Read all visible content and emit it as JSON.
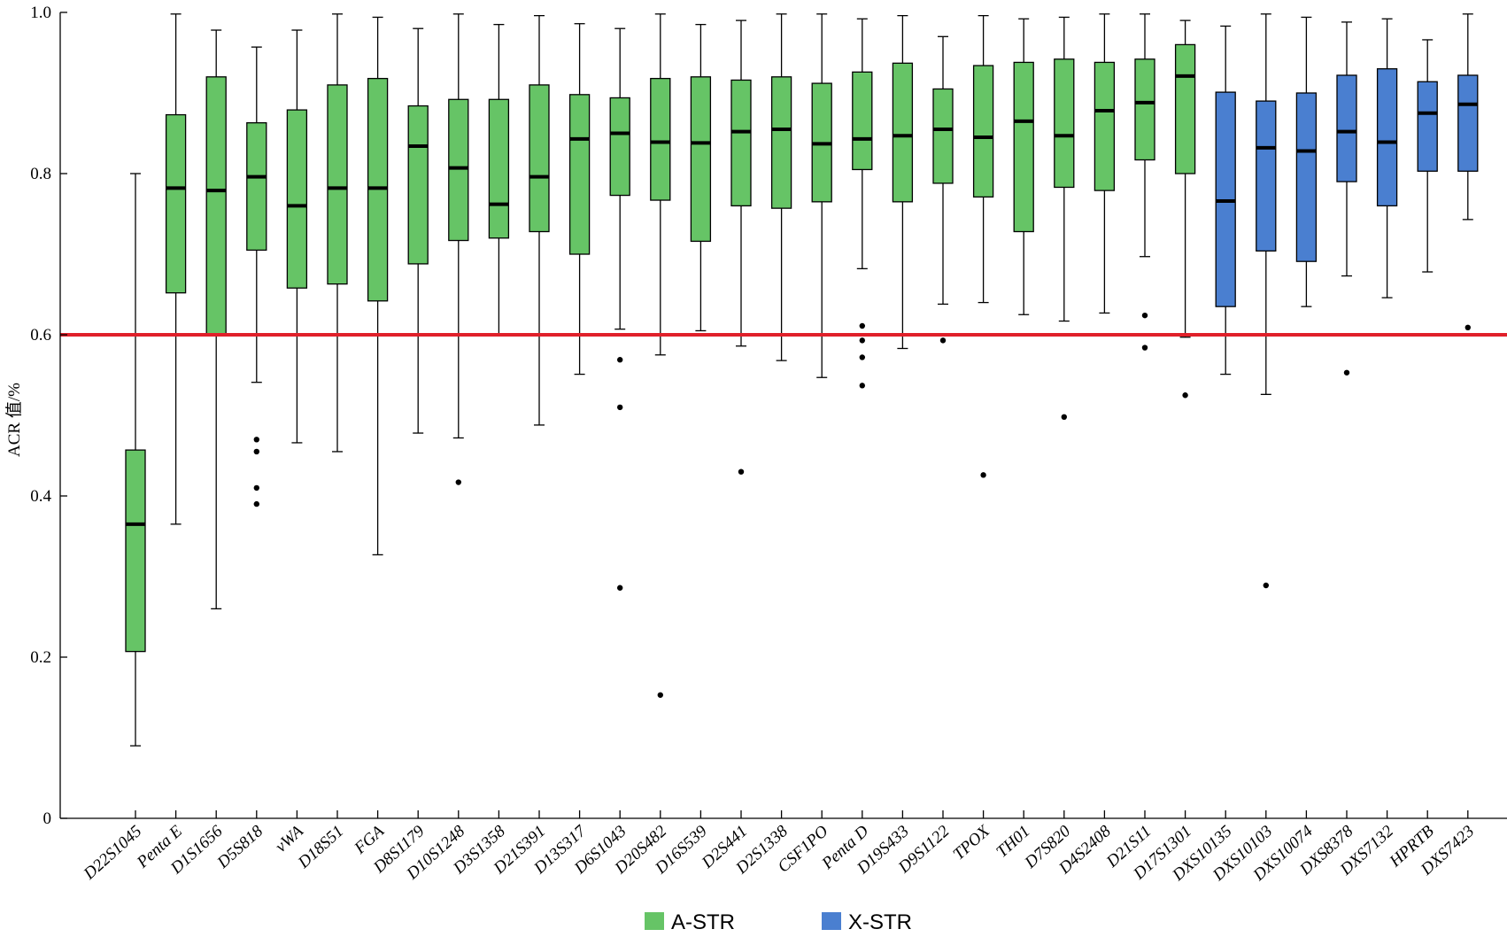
{
  "chart_data": {
    "type": "boxplot",
    "ylabel": "ACR 值/%",
    "ylim": [
      0,
      1.0
    ],
    "yticks": [
      0,
      0.2,
      0.4,
      0.6,
      0.8,
      1.0
    ],
    "ytick_labels": [
      "0",
      "0.2",
      "0.4",
      "0.6",
      "0.8",
      "1.0"
    ],
    "grid": false,
    "threshold": {
      "value": 0.6,
      "color": "#e0202a"
    },
    "groups": [
      {
        "name": "A-STR",
        "color": "#66c466"
      },
      {
        "name": "X-STR",
        "color": "#4a7fd0"
      }
    ],
    "legend_position": "bottom-center",
    "series": [
      {
        "name": "D22S1045",
        "group": "A-STR",
        "whisker_low": 0.09,
        "q1": 0.207,
        "median": 0.365,
        "q3": 0.457,
        "whisker_high": 0.8,
        "outliers": []
      },
      {
        "name": "Penta E",
        "group": "A-STR",
        "whisker_low": 0.365,
        "q1": 0.652,
        "median": 0.782,
        "q3": 0.873,
        "whisker_high": 0.998,
        "outliers": []
      },
      {
        "name": "D1S1656",
        "group": "A-STR",
        "whisker_low": 0.26,
        "q1": 0.6,
        "median": 0.779,
        "q3": 0.92,
        "whisker_high": 0.978,
        "outliers": []
      },
      {
        "name": "D5S818",
        "group": "A-STR",
        "whisker_low": 0.541,
        "q1": 0.705,
        "median": 0.796,
        "q3": 0.863,
        "whisker_high": 0.957,
        "outliers": [
          0.47,
          0.455,
          0.41,
          0.39
        ]
      },
      {
        "name": "vWA",
        "group": "A-STR",
        "whisker_low": 0.466,
        "q1": 0.658,
        "median": 0.76,
        "q3": 0.879,
        "whisker_high": 0.978,
        "outliers": []
      },
      {
        "name": "D18S51",
        "group": "A-STR",
        "whisker_low": 0.455,
        "q1": 0.663,
        "median": 0.782,
        "q3": 0.91,
        "whisker_high": 0.998,
        "outliers": []
      },
      {
        "name": "FGA",
        "group": "A-STR",
        "whisker_low": 0.327,
        "q1": 0.642,
        "median": 0.782,
        "q3": 0.918,
        "whisker_high": 0.994,
        "outliers": []
      },
      {
        "name": "D8S1179",
        "group": "A-STR",
        "whisker_low": 0.478,
        "q1": 0.688,
        "median": 0.834,
        "q3": 0.884,
        "whisker_high": 0.98,
        "outliers": []
      },
      {
        "name": "D10S1248",
        "group": "A-STR",
        "whisker_low": 0.472,
        "q1": 0.717,
        "median": 0.807,
        "q3": 0.892,
        "whisker_high": 0.998,
        "outliers": [
          0.417
        ]
      },
      {
        "name": "D3S1358",
        "group": "A-STR",
        "whisker_low": 0.6,
        "q1": 0.72,
        "median": 0.762,
        "q3": 0.892,
        "whisker_high": 0.985,
        "outliers": []
      },
      {
        "name": "D21S391",
        "group": "A-STR",
        "whisker_low": 0.488,
        "q1": 0.728,
        "median": 0.796,
        "q3": 0.91,
        "whisker_high": 0.996,
        "outliers": []
      },
      {
        "name": "D13S317",
        "group": "A-STR",
        "whisker_low": 0.551,
        "q1": 0.7,
        "median": 0.843,
        "q3": 0.898,
        "whisker_high": 0.986,
        "outliers": []
      },
      {
        "name": "D6S1043",
        "group": "A-STR",
        "whisker_low": 0.607,
        "q1": 0.773,
        "median": 0.85,
        "q3": 0.894,
        "whisker_high": 0.98,
        "outliers": [
          0.569,
          0.51,
          0.286
        ]
      },
      {
        "name": "D20S482",
        "group": "A-STR",
        "whisker_low": 0.575,
        "q1": 0.767,
        "median": 0.839,
        "q3": 0.918,
        "whisker_high": 0.998,
        "outliers": [
          0.153
        ]
      },
      {
        "name": "D16S539",
        "group": "A-STR",
        "whisker_low": 0.605,
        "q1": 0.716,
        "median": 0.838,
        "q3": 0.92,
        "whisker_high": 0.985,
        "outliers": []
      },
      {
        "name": "D2S441",
        "group": "A-STR",
        "whisker_low": 0.586,
        "q1": 0.76,
        "median": 0.852,
        "q3": 0.916,
        "whisker_high": 0.99,
        "outliers": [
          0.43
        ]
      },
      {
        "name": "D2S1338",
        "group": "A-STR",
        "whisker_low": 0.568,
        "q1": 0.757,
        "median": 0.855,
        "q3": 0.92,
        "whisker_high": 0.998,
        "outliers": []
      },
      {
        "name": "CSF1PO",
        "group": "A-STR",
        "whisker_low": 0.547,
        "q1": 0.765,
        "median": 0.837,
        "q3": 0.912,
        "whisker_high": 0.998,
        "outliers": []
      },
      {
        "name": "Penta D",
        "group": "A-STR",
        "whisker_low": 0.682,
        "q1": 0.805,
        "median": 0.843,
        "q3": 0.926,
        "whisker_high": 0.992,
        "outliers": [
          0.611,
          0.593,
          0.572,
          0.537
        ]
      },
      {
        "name": "D19S433",
        "group": "A-STR",
        "whisker_low": 0.583,
        "q1": 0.765,
        "median": 0.847,
        "q3": 0.937,
        "whisker_high": 0.996,
        "outliers": []
      },
      {
        "name": "D9S1122",
        "group": "A-STR",
        "whisker_low": 0.638,
        "q1": 0.788,
        "median": 0.855,
        "q3": 0.905,
        "whisker_high": 0.97,
        "outliers": [
          0.593
        ]
      },
      {
        "name": "TPOX",
        "group": "A-STR",
        "whisker_low": 0.64,
        "q1": 0.771,
        "median": 0.845,
        "q3": 0.934,
        "whisker_high": 0.996,
        "outliers": [
          0.426
        ]
      },
      {
        "name": "TH01",
        "group": "A-STR",
        "whisker_low": 0.625,
        "q1": 0.728,
        "median": 0.865,
        "q3": 0.938,
        "whisker_high": 0.992,
        "outliers": []
      },
      {
        "name": "D7S820",
        "group": "A-STR",
        "whisker_low": 0.617,
        "q1": 0.783,
        "median": 0.847,
        "q3": 0.942,
        "whisker_high": 0.994,
        "outliers": [
          0.498
        ]
      },
      {
        "name": "D4S2408",
        "group": "A-STR",
        "whisker_low": 0.627,
        "q1": 0.779,
        "median": 0.878,
        "q3": 0.938,
        "whisker_high": 0.998,
        "outliers": []
      },
      {
        "name": "D21S11",
        "group": "A-STR",
        "whisker_low": 0.697,
        "q1": 0.817,
        "median": 0.888,
        "q3": 0.942,
        "whisker_high": 0.998,
        "outliers": [
          0.624,
          0.584
        ]
      },
      {
        "name": "D17S1301",
        "group": "A-STR",
        "whisker_low": 0.597,
        "q1": 0.8,
        "median": 0.921,
        "q3": 0.96,
        "whisker_high": 0.99,
        "outliers": [
          0.525
        ]
      },
      {
        "name": "DXS10135",
        "group": "X-STR",
        "whisker_low": 0.551,
        "q1": 0.635,
        "median": 0.766,
        "q3": 0.901,
        "whisker_high": 0.983,
        "outliers": []
      },
      {
        "name": "DXS10103",
        "group": "X-STR",
        "whisker_low": 0.526,
        "q1": 0.704,
        "median": 0.832,
        "q3": 0.89,
        "whisker_high": 0.998,
        "outliers": [
          0.289
        ]
      },
      {
        "name": "DXS10074",
        "group": "X-STR",
        "whisker_low": 0.635,
        "q1": 0.691,
        "median": 0.828,
        "q3": 0.9,
        "whisker_high": 0.994,
        "outliers": []
      },
      {
        "name": "DXS8378",
        "group": "X-STR",
        "whisker_low": 0.673,
        "q1": 0.79,
        "median": 0.852,
        "q3": 0.922,
        "whisker_high": 0.988,
        "outliers": [
          0.553
        ]
      },
      {
        "name": "DXS7132",
        "group": "X-STR",
        "whisker_low": 0.646,
        "q1": 0.76,
        "median": 0.839,
        "q3": 0.93,
        "whisker_high": 0.992,
        "outliers": []
      },
      {
        "name": "HPRTB",
        "group": "X-STR",
        "whisker_low": 0.678,
        "q1": 0.803,
        "median": 0.875,
        "q3": 0.914,
        "whisker_high": 0.966,
        "outliers": []
      },
      {
        "name": "DXS7423",
        "group": "X-STR",
        "whisker_low": 0.743,
        "q1": 0.803,
        "median": 0.886,
        "q3": 0.922,
        "whisker_high": 0.998,
        "outliers": [
          0.609
        ]
      }
    ]
  }
}
